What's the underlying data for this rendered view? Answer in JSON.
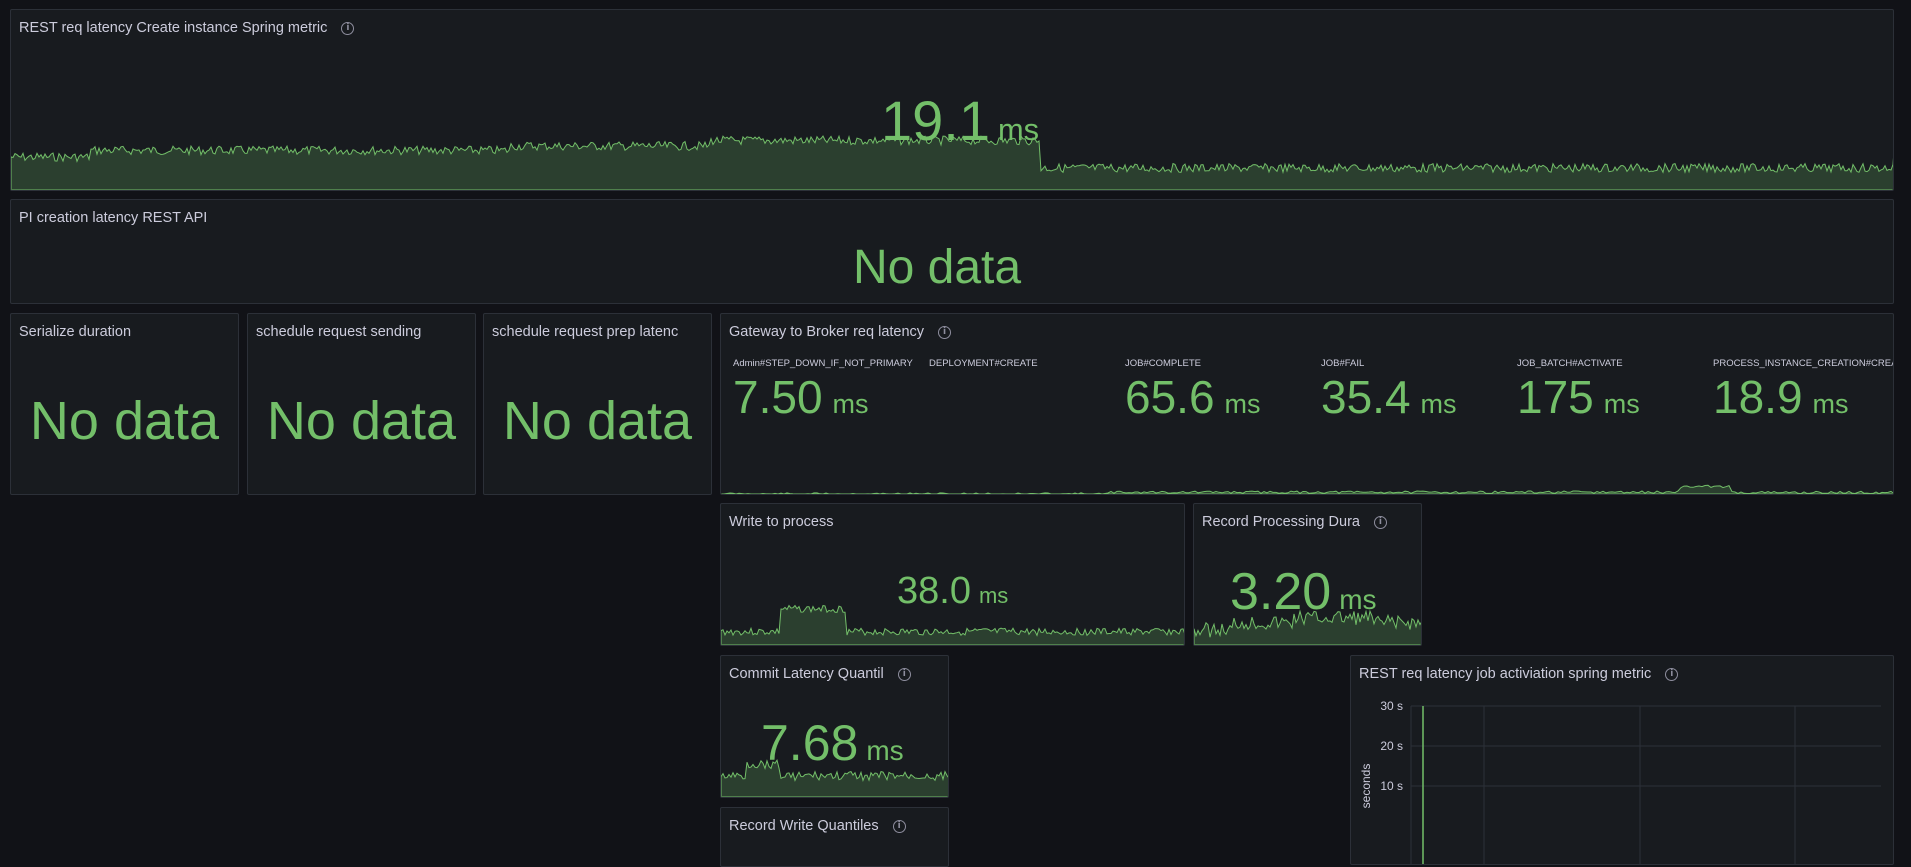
{
  "colors": {
    "background": "#111217",
    "panel": "#181b1f",
    "accent": "#73bf69",
    "text": "#ccccdc"
  },
  "panels": {
    "rest_create": {
      "title": "REST req latency Create instance Spring metric",
      "value": "19.1",
      "unit": "ms",
      "icon": "info-icon"
    },
    "pi_creation": {
      "title": "PI creation latency REST API",
      "value": "No data"
    },
    "serialize": {
      "title": "Serialize duration",
      "value": "No data"
    },
    "schedule_send": {
      "title": "schedule request sending",
      "value": "No data"
    },
    "schedule_prep": {
      "title": "schedule request prep latenc",
      "value": "No data"
    },
    "gateway": {
      "title": "Gateway to Broker req latency",
      "icon": "info-icon",
      "items": [
        {
          "label": "Admin#STEP_DOWN_IF_NOT_PRIMARY",
          "value": "7.50",
          "unit": "ms"
        },
        {
          "label": "DEPLOYMENT#CREATE",
          "value": "",
          "unit": ""
        },
        {
          "label": "JOB#COMPLETE",
          "value": "65.6",
          "unit": "ms"
        },
        {
          "label": "JOB#FAIL",
          "value": "35.4",
          "unit": "ms"
        },
        {
          "label": "JOB_BATCH#ACTIVATE",
          "value": "175",
          "unit": "ms"
        },
        {
          "label": "PROCESS_INSTANCE_CREATION#CREATE",
          "value": "18.9",
          "unit": "ms"
        }
      ]
    },
    "write_process": {
      "title": "Write to process",
      "value": "38.0",
      "unit": "ms"
    },
    "record_processing": {
      "title": "Record Processing Dura",
      "value": "3.20",
      "unit": "ms",
      "icon": "info-icon"
    },
    "commit_latency": {
      "title": "Commit Latency Quantil",
      "value": "7.68",
      "unit": "ms",
      "icon": "info-icon"
    },
    "record_write": {
      "title": "Record Write Quantiles",
      "icon": "info-icon"
    },
    "rest_job": {
      "title": "REST req latency job activiation spring metric",
      "icon": "info-icon",
      "chart_data": {
        "type": "line",
        "ylabel": "seconds",
        "y_ticks": [
          "30 s",
          "20 s",
          "10 s"
        ],
        "y_tick_values": [
          30,
          20,
          10
        ],
        "series": []
      }
    }
  }
}
